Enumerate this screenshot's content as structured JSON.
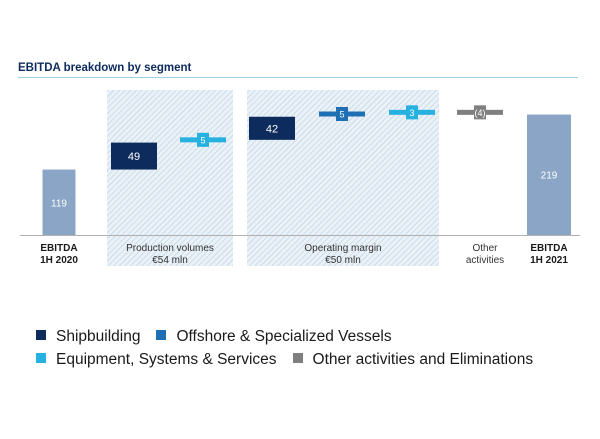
{
  "chart_data": {
    "type": "waterfall",
    "title": "EBITDA breakdown by segment",
    "unit": "€ mln",
    "start": {
      "label": [
        "EBITDA",
        "1H 2020"
      ],
      "value": 119
    },
    "end": {
      "label": [
        "EBITDA",
        "1H 2021"
      ],
      "value": 219
    },
    "groups": [
      {
        "label": [
          "Production volumes",
          "€54 mln"
        ],
        "total": 54
      },
      {
        "label": [
          "Operating margin",
          "€50 mln"
        ],
        "total": 50
      },
      {
        "label": [
          "Other",
          "activities"
        ],
        "total": null
      }
    ],
    "steps": [
      {
        "group": 0,
        "series": "Shipbuilding",
        "value": 49,
        "label": "49"
      },
      {
        "group": 0,
        "series": "Offshore & Specialized Vessels",
        "value": 0,
        "label": ""
      },
      {
        "group": 0,
        "series": "Equipment, Systems & Services",
        "value": 5,
        "label": "5"
      },
      {
        "group": 1,
        "series": "Shipbuilding",
        "value": 42,
        "label": "42"
      },
      {
        "group": 1,
        "series": "Offshore & Specialized Vessels",
        "value": 5,
        "label": "5"
      },
      {
        "group": 1,
        "series": "Equipment, Systems & Services",
        "value": 3,
        "label": "3"
      },
      {
        "group": 2,
        "series": "Other activities and Eliminations",
        "value": -4,
        "label": "(4)"
      }
    ],
    "series": [
      {
        "name": "Shipbuilding",
        "color": "#0d2b5c"
      },
      {
        "name": "Offshore & Specialized Vessels",
        "color": "#1f6fb5"
      },
      {
        "name": "Equipment, Systems & Services",
        "color": "#27b1e0"
      },
      {
        "name": "Other activities and Eliminations",
        "color": "#7f7f7f"
      }
    ],
    "total_color": "#8aa5c6",
    "grid": false,
    "legend_position": "bottom"
  }
}
